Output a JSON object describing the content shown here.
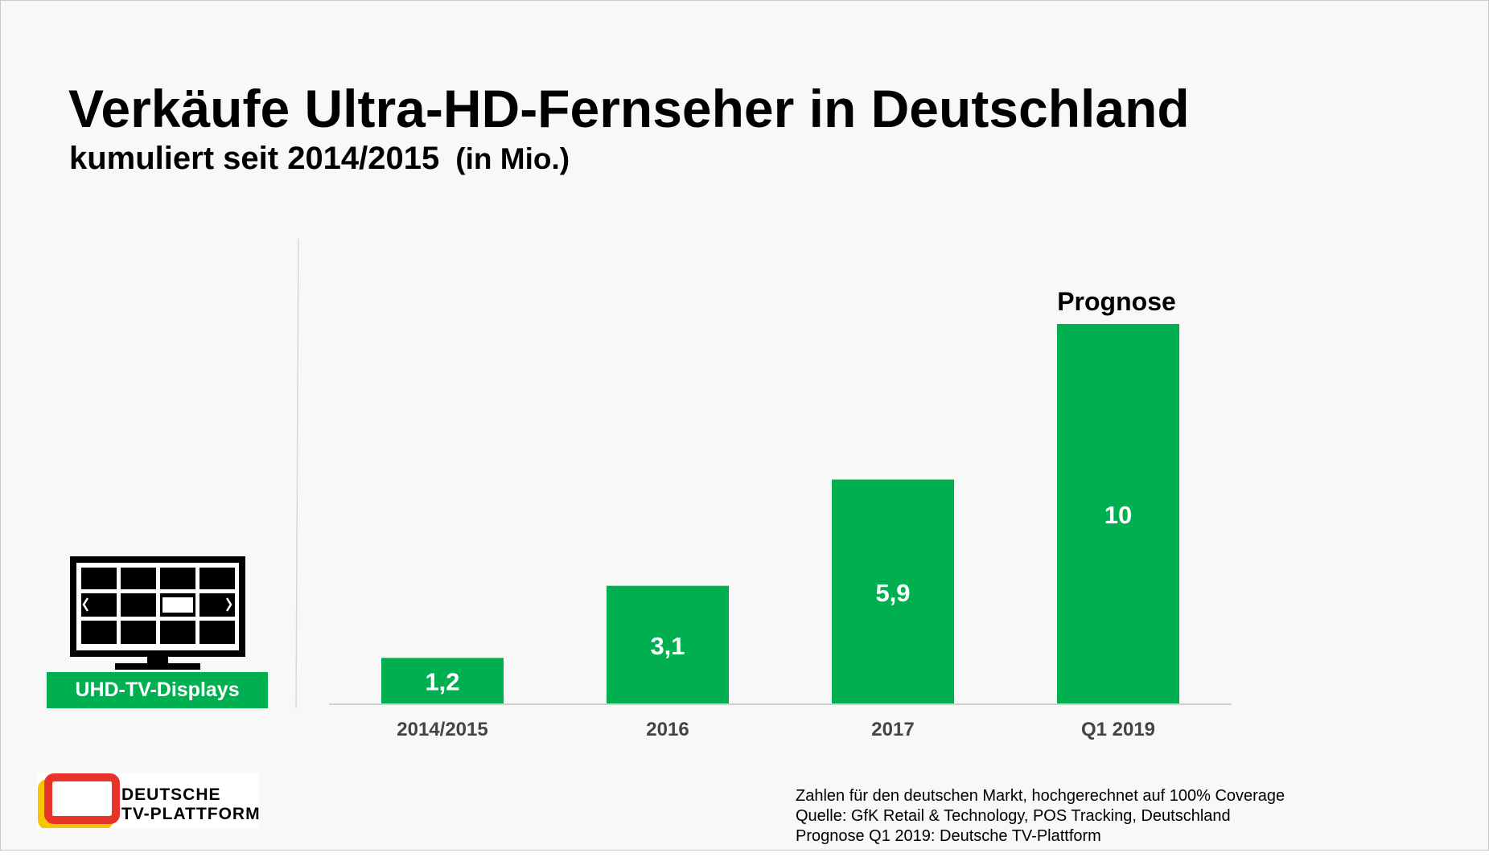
{
  "title": "Verkäufe Ultra-HD-Fernseher in Deutschland",
  "subtitle": "kumuliert seit 2014/2015",
  "unit": "(in Mio.)",
  "device_label": "UHD-TV-Displays",
  "icons": {
    "tv": "tv-grid-icon",
    "logo": "deutsche-tv-plattform-logo"
  },
  "logo": {
    "line1": "DEUTSCHE",
    "line2": "TV-PLATTFORM"
  },
  "sources": [
    "Zahlen für den deutschen Markt, hochgerechnet auf 100% Coverage",
    "Quelle: GfK Retail & Technology, POS Tracking, Deutschland",
    "Prognose Q1 2019: Deutsche TV-Plattform"
  ],
  "colors": {
    "accent": "#00b050",
    "text": "#000000",
    "axis": "#d0d0d0",
    "logo_red": "#e8332a",
    "logo_yellow": "#f7c600"
  },
  "chart_data": {
    "type": "bar",
    "title": "Verkäufe Ultra-HD-Fernseher in Deutschland",
    "subtitle": "kumuliert seit 2014/2015 (in Mio.)",
    "categories": [
      "2014/2015",
      "2016",
      "2017",
      "Q1 2019"
    ],
    "values": [
      1.2,
      3.1,
      5.9,
      10
    ],
    "value_labels": [
      "1,2",
      "3,1",
      "5,9",
      "10"
    ],
    "annotations": [
      {
        "category": "Q1 2019",
        "text": "Prognose"
      }
    ],
    "xlabel": "",
    "ylabel": "",
    "ylim": [
      0,
      10
    ],
    "grid": false,
    "legend": "none"
  }
}
